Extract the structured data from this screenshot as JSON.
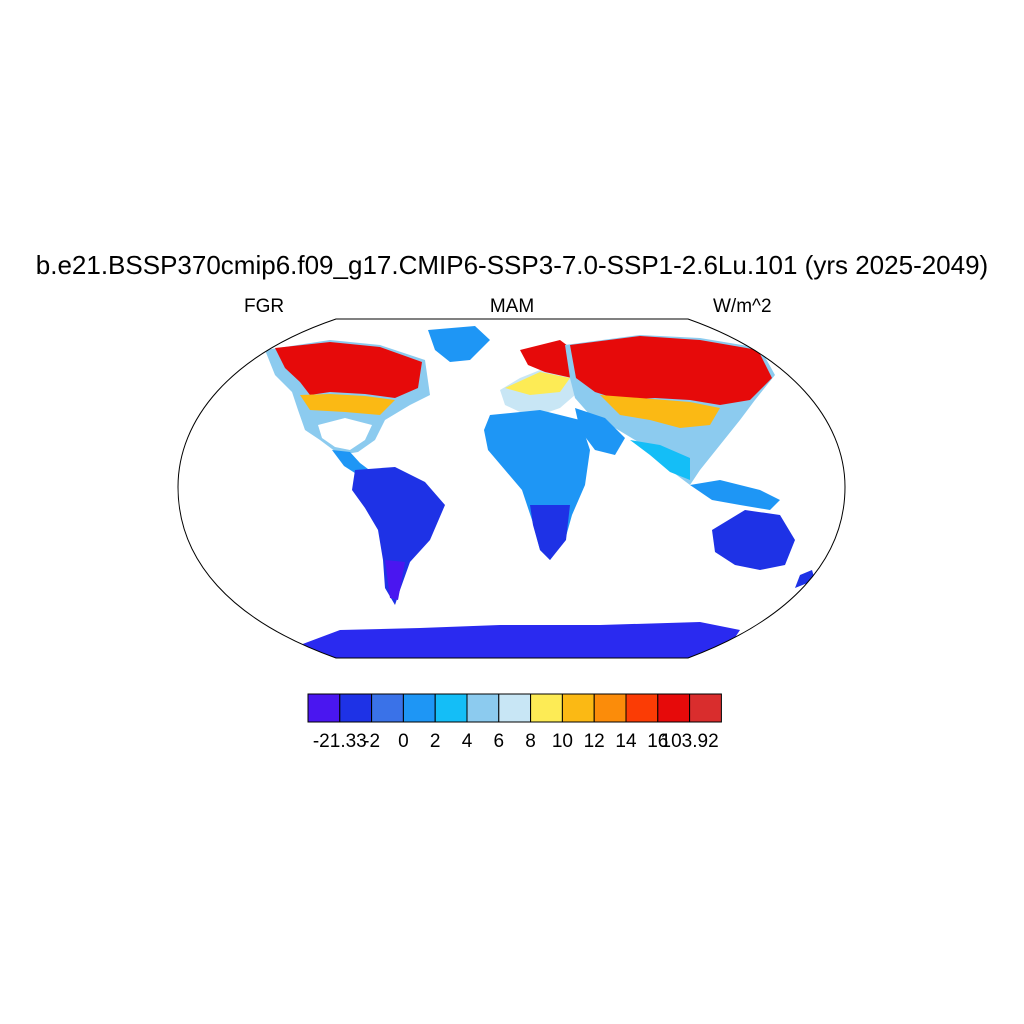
{
  "title": "b.e21.BSSP370cmip6.f09_g17.CMIP6-SSP3-7.0-SSP1-2.6Lu.101 (yrs 2025-2049)",
  "subtitle": {
    "left": "FGR",
    "center": "MAM",
    "right": "W/m^2"
  },
  "colorbar": {
    "colors": [
      "#4a16f0",
      "#1e32e6",
      "#3a72e8",
      "#1e96f5",
      "#14bef7",
      "#8ccbef",
      "#c8e6f5",
      "#fdeb55",
      "#fbb914",
      "#fb8c0a",
      "#fb3c05",
      "#e60a0a",
      "#d92d2d"
    ],
    "labels": [
      "-21.33",
      "-2",
      "0",
      "2",
      "4",
      "6",
      "8",
      "10",
      "12",
      "14",
      "16",
      "103.92"
    ]
  },
  "colors": {
    "ocean": "#ffffff",
    "border": "#000000",
    "antarctica": "#2a2af0"
  }
}
